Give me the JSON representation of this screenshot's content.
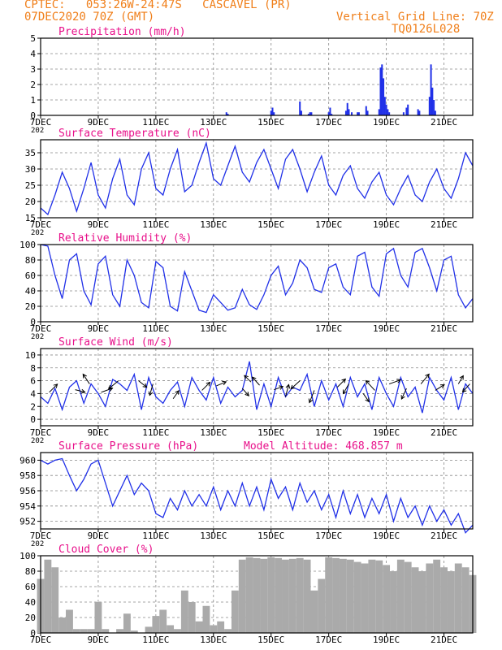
{
  "header": {
    "line1": "CPTEC:   053:26W-24:47S   CASCAVEL (PR)",
    "line2": "07DEC2020 70Z (GMT)",
    "grid_note": "Vertical Grid Line: 70Z",
    "code": "TQ0126L028"
  },
  "colors": {
    "header": "#f07f1a",
    "title": "#e8108a",
    "line": "#2030e8",
    "cloud": "#aaaaaa",
    "arrow": "#000000"
  },
  "x_ticks": [
    "7DEC",
    "9DEC",
    "11DEC",
    "13DEC",
    "15DEC",
    "17DEC",
    "19DEC",
    "21DEC"
  ],
  "x_ticks_secondary": "202",
  "chart_data": [
    {
      "type": "bar",
      "id": "precip",
      "title": "Precipitation (mm/h)",
      "ylim": [
        0,
        5
      ],
      "yticks": [
        0,
        1,
        2,
        3,
        4,
        5
      ],
      "x_unit": "days since 07DEC2020 00Z",
      "xlim": [
        0,
        15
      ],
      "x": [
        6.45,
        6.5,
        8.0,
        8.05,
        8.1,
        9.0,
        9.05,
        9.3,
        9.35,
        9.4,
        10.0,
        10.05,
        10.1,
        10.6,
        10.65,
        10.7,
        10.8,
        11.0,
        11.05,
        11.3,
        11.35,
        11.75,
        11.8,
        11.85,
        11.9,
        11.95,
        12.0,
        12.05,
        12.1,
        12.6,
        12.7,
        12.75,
        13.1,
        13.15,
        13.5,
        13.55,
        13.6,
        13.65,
        13.7
      ],
      "values": [
        0.2,
        0.1,
        0.3,
        0.5,
        0.2,
        0.9,
        0.3,
        0.1,
        0.2,
        0.2,
        0.2,
        0.5,
        0.1,
        0.3,
        0.8,
        0.4,
        0.2,
        0.2,
        0.2,
        0.6,
        0.3,
        0.4,
        3.1,
        3.3,
        2.4,
        1.2,
        0.7,
        0.4,
        0.2,
        0.2,
        0.5,
        0.7,
        0.4,
        0.3,
        1.2,
        3.3,
        1.8,
        1.0,
        0.3
      ]
    },
    {
      "type": "line",
      "id": "temp",
      "title": "Surface Temperature (nC)",
      "ylim": [
        15,
        39
      ],
      "yticks": [
        15,
        20,
        25,
        30,
        35
      ],
      "x_unit": "days since 07DEC2020 00Z",
      "xlim": [
        0,
        15
      ],
      "x": [
        0,
        0.25,
        0.5,
        0.75,
        1,
        1.25,
        1.5,
        1.75,
        2,
        2.25,
        2.5,
        2.75,
        3,
        3.25,
        3.5,
        3.75,
        4,
        4.25,
        4.5,
        4.75,
        5,
        5.25,
        5.5,
        5.75,
        6,
        6.25,
        6.5,
        6.75,
        7,
        7.25,
        7.5,
        7.75,
        8,
        8.25,
        8.5,
        8.75,
        9,
        9.25,
        9.5,
        9.75,
        10,
        10.25,
        10.5,
        10.75,
        11,
        11.25,
        11.5,
        11.75,
        12,
        12.25,
        12.5,
        12.75,
        13,
        13.25,
        13.5,
        13.75,
        14,
        14.25,
        14.5,
        14.75,
        15
      ],
      "values": [
        18,
        16,
        22,
        29,
        24,
        17,
        24,
        32,
        22,
        18,
        27,
        33,
        22,
        19,
        30,
        35,
        24,
        22,
        30,
        36,
        23,
        25,
        32,
        38,
        27,
        25,
        31,
        37,
        29,
        26,
        32,
        36,
        30,
        24,
        33,
        36,
        30,
        23,
        29,
        34,
        25,
        22,
        28,
        31,
        24,
        21,
        26,
        29,
        22,
        19,
        24,
        28,
        22,
        20,
        26,
        30,
        24,
        21,
        27,
        35,
        31
      ]
    },
    {
      "type": "line",
      "id": "rh",
      "title": "Relative Humidity (%)",
      "ylim": [
        0,
        100
      ],
      "yticks": [
        0,
        20,
        40,
        60,
        80,
        100
      ],
      "x_unit": "days since 07DEC2020 00Z",
      "xlim": [
        0,
        15
      ],
      "x": [
        0,
        0.25,
        0.5,
        0.75,
        1,
        1.25,
        1.5,
        1.75,
        2,
        2.25,
        2.5,
        2.75,
        3,
        3.25,
        3.5,
        3.75,
        4,
        4.25,
        4.5,
        4.75,
        5,
        5.25,
        5.5,
        5.75,
        6,
        6.25,
        6.5,
        6.75,
        7,
        7.25,
        7.5,
        7.75,
        8,
        8.25,
        8.5,
        8.75,
        9,
        9.25,
        9.5,
        9.75,
        10,
        10.25,
        10.5,
        10.75,
        11,
        11.25,
        11.5,
        11.75,
        12,
        12.25,
        12.5,
        12.75,
        13,
        13.25,
        13.5,
        13.75,
        14,
        14.25,
        14.5,
        14.75,
        15
      ],
      "values": [
        100,
        98,
        60,
        30,
        80,
        88,
        40,
        22,
        75,
        85,
        35,
        20,
        80,
        60,
        25,
        18,
        78,
        70,
        20,
        14,
        65,
        40,
        15,
        12,
        35,
        25,
        15,
        18,
        42,
        22,
        16,
        35,
        60,
        72,
        35,
        50,
        80,
        70,
        42,
        38,
        70,
        75,
        45,
        35,
        85,
        90,
        45,
        33,
        88,
        95,
        60,
        45,
        90,
        95,
        70,
        40,
        80,
        85,
        35,
        18,
        30
      ]
    },
    {
      "type": "line",
      "id": "wind",
      "title": "Surface Wind (m/s)",
      "ylim": [
        -1,
        11
      ],
      "yticks": [
        0,
        2,
        4,
        6,
        8,
        10
      ],
      "x_unit": "days since 07DEC2020 00Z",
      "xlim": [
        0,
        15
      ],
      "x": [
        0,
        0.25,
        0.5,
        0.75,
        1,
        1.25,
        1.5,
        1.75,
        2,
        2.25,
        2.5,
        2.75,
        3,
        3.25,
        3.5,
        3.75,
        4,
        4.25,
        4.5,
        4.75,
        5,
        5.25,
        5.5,
        5.75,
        6,
        6.25,
        6.5,
        6.75,
        7,
        7.25,
        7.5,
        7.75,
        8,
        8.25,
        8.5,
        8.75,
        9,
        9.25,
        9.5,
        9.75,
        10,
        10.25,
        10.5,
        10.75,
        11,
        11.25,
        11.5,
        11.75,
        12,
        12.25,
        12.5,
        12.75,
        13,
        13.25,
        13.5,
        13.75,
        14,
        14.25,
        14.5,
        14.75,
        15
      ],
      "values": [
        3.5,
        2.5,
        4.8,
        1.5,
        5.0,
        6.0,
        2.5,
        5.5,
        4.0,
        2.0,
        6.2,
        5.5,
        4.5,
        7.0,
        1.5,
        6.5,
        3.5,
        2.5,
        4.5,
        5.8,
        2.0,
        6.5,
        4.5,
        3.0,
        6.5,
        2.5,
        5.0,
        3.5,
        4.5,
        9.0,
        1.5,
        5.5,
        2.0,
        6.5,
        3.5,
        5.0,
        4.5,
        7.0,
        2.0,
        6.0,
        3.0,
        5.5,
        2.0,
        6.5,
        3.5,
        5.5,
        1.5,
        6.5,
        4.0,
        2.0,
        6.5,
        3.5,
        5.0,
        1.0,
        6.5,
        4.5,
        3.0,
        6.5,
        1.5,
        5.5,
        4.0
      ],
      "arrows": {
        "x": [
          0.3,
          1.2,
          1.7,
          2.7,
          2.1,
          3.4,
          3.9,
          4.6,
          5.6,
          6.1,
          7.0,
          7.3,
          7.6,
          8.1,
          8.5,
          9.0,
          9.5,
          10.3,
          10.7,
          11.2,
          11.6,
          12.1,
          12.7,
          13.2,
          13.7,
          14.5,
          14.9
        ],
        "values": [
          4.2,
          4.6,
          5.5,
          6.0,
          4.2,
          6.0,
          5.5,
          3.2,
          4.5,
          5.2,
          4.8,
          5.8,
          5.3,
          4.6,
          3.5,
          6.0,
          4.5,
          5.0,
          5.5,
          4.0,
          4.5,
          5.5,
          4.8,
          5.5,
          4.5,
          5.5,
          5.5
        ],
        "u": [
          1,
          1.2,
          -0.8,
          -1.2,
          1.4,
          1,
          -0.4,
          0.7,
          1,
          1.2,
          0.8,
          -0.8,
          -0.9,
          1.1,
          0.4,
          -1.1,
          -0.6,
          1,
          -0.7,
          0.7,
          -1.1,
          1.4,
          -0.6,
          1,
          1.1,
          0.6,
          -0.9
        ],
        "v": [
          1,
          -0.3,
          1.2,
          -1,
          0.5,
          -0.8,
          -1.4,
          1,
          1,
          0.5,
          -0.9,
          0.8,
          1,
          0.4,
          1.5,
          -1,
          -1.5,
          1,
          -1.2,
          -1,
          1.2,
          0.5,
          -1.3,
          1.2,
          0.7,
          1,
          -1
        ]
      }
    },
    {
      "type": "line",
      "id": "pres",
      "title": "Surface Pressure (hPa)",
      "note": "Model Altitude: 468.857 m",
      "ylim": [
        951,
        961
      ],
      "yticks": [
        952,
        954,
        956,
        958,
        960
      ],
      "x_unit": "days since 07DEC2020 00Z",
      "xlim": [
        0,
        15
      ],
      "x": [
        0,
        0.25,
        0.5,
        0.75,
        1,
        1.25,
        1.5,
        1.75,
        2,
        2.25,
        2.5,
        2.75,
        3,
        3.25,
        3.5,
        3.75,
        4,
        4.25,
        4.5,
        4.75,
        5,
        5.25,
        5.5,
        5.75,
        6,
        6.25,
        6.5,
        6.75,
        7,
        7.25,
        7.5,
        7.75,
        8,
        8.25,
        8.5,
        8.75,
        9,
        9.25,
        9.5,
        9.75,
        10,
        10.25,
        10.5,
        10.75,
        11,
        11.25,
        11.5,
        11.75,
        12,
        12.25,
        12.5,
        12.75,
        13,
        13.25,
        13.5,
        13.75,
        14,
        14.25,
        14.5,
        14.75,
        15
      ],
      "values": [
        960,
        959.5,
        960,
        960.2,
        958,
        956,
        957.5,
        959.5,
        960,
        957,
        954,
        956,
        958,
        955.5,
        957,
        956,
        953,
        952.5,
        955,
        953.5,
        956,
        954,
        955.5,
        954,
        956.5,
        953.5,
        956,
        954,
        957,
        954,
        956.5,
        953.5,
        957.5,
        955,
        956.5,
        953.5,
        957,
        954.5,
        956,
        953.5,
        955.5,
        952.5,
        956,
        953,
        955.5,
        952.5,
        955,
        953,
        955.5,
        952,
        955,
        952.5,
        954,
        951.5,
        954,
        952,
        953.5,
        951.5,
        953,
        950.5,
        951.5
      ]
    },
    {
      "type": "area",
      "id": "cloud",
      "title": "Cloud Cover (%)",
      "ylim": [
        0,
        100
      ],
      "yticks": [
        0,
        20,
        40,
        60,
        80,
        100
      ],
      "x_unit": "days since 07DEC2020 00Z",
      "xlim": [
        0,
        15
      ],
      "x": [
        0,
        0.25,
        0.5,
        0.75,
        1,
        1.25,
        1.5,
        1.75,
        2,
        2.25,
        2.5,
        2.75,
        3,
        3.25,
        3.5,
        3.75,
        4,
        4.25,
        4.5,
        4.75,
        5,
        5.25,
        5.5,
        5.75,
        6,
        6.25,
        6.5,
        6.75,
        7,
        7.25,
        7.5,
        7.75,
        8,
        8.25,
        8.5,
        8.75,
        9,
        9.25,
        9.5,
        9.75,
        10,
        10.25,
        10.5,
        10.75,
        11,
        11.25,
        11.5,
        11.75,
        12,
        12.25,
        12.5,
        12.75,
        13,
        13.25,
        13.5,
        13.75,
        14,
        14.25,
        14.5,
        14.75,
        15
      ],
      "values": [
        70,
        95,
        85,
        20,
        30,
        5,
        5,
        5,
        40,
        5,
        0,
        5,
        25,
        3,
        0,
        8,
        22,
        30,
        10,
        5,
        55,
        40,
        15,
        35,
        10,
        15,
        5,
        55,
        95,
        98,
        97,
        96,
        98,
        97,
        95,
        96,
        97,
        95,
        55,
        70,
        98,
        97,
        96,
        95,
        92,
        90,
        95,
        94,
        88,
        80,
        95,
        92,
        85,
        80,
        90,
        95,
        85,
        80,
        90,
        85,
        75
      ]
    }
  ]
}
